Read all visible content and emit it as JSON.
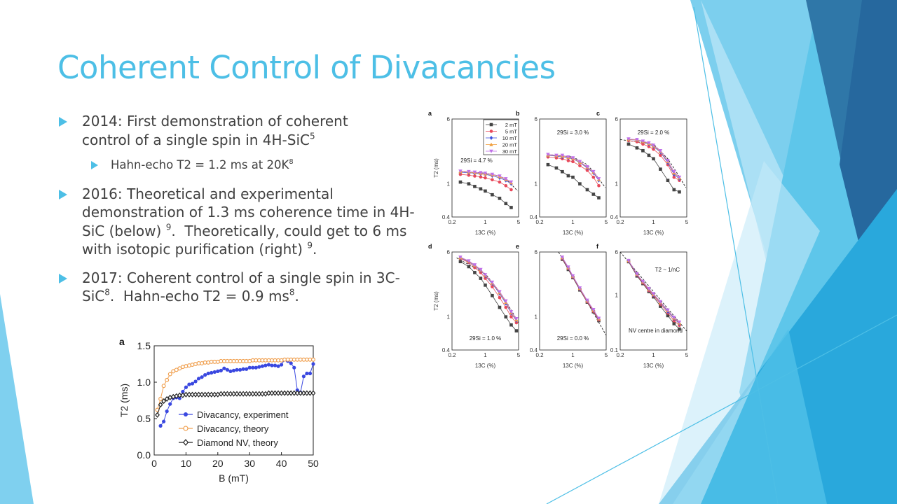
{
  "slide": {
    "title": "Coherent Control of Divacancies",
    "accent_color": "#4dbfe6",
    "bullets": [
      {
        "text": "2014: First demonstration of coherent control of a single spin in 4H-SiC",
        "sup": "5",
        "sub": {
          "text": "Hahn-echo T2 = 1.2 ms at 20K",
          "sup": "8"
        }
      },
      {
        "text_a": "2016: Theoretical and experimental demonstration of 1.3 ms coherence time in 4H-SiC (below)",
        "sup_a": "9",
        "text_b": ".  Theoretically, could get to 6 ms with isotopic purification (right)",
        "sup_b": "9",
        "text_c": "."
      },
      {
        "text_a": "2017: Coherent control of a single spin in 3C-SiC",
        "sup_a": "8",
        "text_b": ".  Hahn-echo T2 = 0.9 ms",
        "sup_b": "8",
        "text_c": "."
      }
    ]
  },
  "chart_data": [
    {
      "type": "line",
      "panel_label": "a",
      "xlabel": "B (mT)",
      "ylabel": "T2 (ms)",
      "xlim": [
        0,
        50
      ],
      "ylim": [
        0,
        1.5
      ],
      "xticks": [
        "0",
        "10",
        "20",
        "30",
        "40",
        "50"
      ],
      "yticks": [
        "0.0",
        "0.5",
        "1.0",
        "1.5"
      ],
      "legend_position": "bottom-right",
      "series": [
        {
          "name": "Divacancy, experiment",
          "color": "#3a48e0",
          "marker": "filled-circle",
          "x": [
            2,
            3,
            4,
            5,
            6,
            7,
            8,
            9,
            10,
            11,
            12,
            13,
            14,
            15,
            16,
            17,
            18,
            19,
            20,
            21,
            22,
            23,
            24,
            25,
            26,
            27,
            28,
            29,
            30,
            31,
            32,
            33,
            34,
            35,
            36,
            37,
            38,
            39,
            40,
            41,
            42,
            43,
            44,
            45,
            46,
            47,
            48,
            49,
            50
          ],
          "y": [
            0.4,
            0.46,
            0.6,
            0.7,
            0.78,
            0.79,
            0.78,
            0.87,
            0.93,
            0.97,
            0.98,
            1.01,
            1.05,
            1.07,
            1.1,
            1.12,
            1.13,
            1.14,
            1.15,
            1.16,
            1.19,
            1.17,
            1.15,
            1.16,
            1.17,
            1.17,
            1.18,
            1.18,
            1.2,
            1.2,
            1.2,
            1.21,
            1.22,
            1.23,
            1.24,
            1.23,
            1.23,
            1.22,
            1.24,
            1.31,
            1.29,
            1.26,
            1.2,
            0.89,
            0.86,
            1.08,
            1.12,
            1.12,
            1.25
          ]
        },
        {
          "name": "Divacancy, theory",
          "color": "#f0a050",
          "marker": "open-circle",
          "x": [
            1,
            2,
            3,
            4,
            5,
            6,
            7,
            8,
            9,
            10,
            11,
            12,
            13,
            14,
            15,
            16,
            17,
            18,
            19,
            20,
            21,
            22,
            23,
            24,
            25,
            26,
            27,
            28,
            29,
            30,
            31,
            32,
            33,
            34,
            35,
            36,
            37,
            38,
            39,
            40,
            41,
            42,
            43,
            44,
            45,
            46,
            47,
            48,
            49,
            50
          ],
          "y": [
            0.62,
            0.77,
            0.95,
            1.03,
            1.11,
            1.15,
            1.17,
            1.19,
            1.21,
            1.22,
            1.23,
            1.24,
            1.25,
            1.26,
            1.26,
            1.27,
            1.27,
            1.28,
            1.28,
            1.28,
            1.29,
            1.29,
            1.29,
            1.29,
            1.29,
            1.29,
            1.29,
            1.29,
            1.29,
            1.29,
            1.3,
            1.3,
            1.3,
            1.3,
            1.3,
            1.3,
            1.3,
            1.3,
            1.3,
            1.3,
            1.31,
            1.31,
            1.31,
            1.31,
            1.31,
            1.31,
            1.31,
            1.31,
            1.31,
            1.31
          ]
        },
        {
          "name": "Diamond NV, theory",
          "color": "#222222",
          "marker": "open-diamond",
          "x": [
            1,
            2,
            3,
            4,
            5,
            6,
            7,
            8,
            9,
            10,
            11,
            12,
            13,
            14,
            15,
            16,
            17,
            18,
            19,
            20,
            21,
            22,
            23,
            24,
            25,
            26,
            27,
            28,
            29,
            30,
            31,
            32,
            33,
            34,
            35,
            36,
            37,
            38,
            39,
            40,
            41,
            42,
            43,
            44,
            45,
            46,
            47,
            48,
            49,
            50
          ],
          "y": [
            0.55,
            0.69,
            0.74,
            0.77,
            0.79,
            0.8,
            0.81,
            0.82,
            0.82,
            0.83,
            0.83,
            0.83,
            0.83,
            0.83,
            0.83,
            0.83,
            0.83,
            0.83,
            0.83,
            0.83,
            0.84,
            0.84,
            0.84,
            0.84,
            0.84,
            0.84,
            0.84,
            0.84,
            0.84,
            0.84,
            0.84,
            0.84,
            0.84,
            0.84,
            0.84,
            0.85,
            0.85,
            0.85,
            0.85,
            0.85,
            0.85,
            0.85,
            0.85,
            0.85,
            0.85,
            0.85,
            0.85,
            0.85,
            0.85,
            0.85
          ]
        }
      ]
    },
    {
      "type": "scatter",
      "xlabel": "13C (%)",
      "ylabel": "T2 (ms)",
      "xscale": "log",
      "yscale": "log",
      "xlim": [
        0.2,
        5
      ],
      "xticks": [
        "0.2",
        "1",
        "5"
      ],
      "legend_position": "top-right (panel a)",
      "legend": [
        {
          "name": "2 mT",
          "color": "#444444",
          "marker": "square"
        },
        {
          "name": "5 mT",
          "color": "#e8495a",
          "marker": "circle"
        },
        {
          "name": "10 mT",
          "color": "#3b4fe0",
          "marker": "diamond"
        },
        {
          "name": "20 mT",
          "color": "#f0a040",
          "marker": "triangle-up"
        },
        {
          "name": "30 mT",
          "color": "#c070e8",
          "marker": "triangle-down"
        }
      ],
      "panels": [
        {
          "label": "a",
          "annotation": "29Si = 4.7 %",
          "ylim": [
            0.4,
            6
          ],
          "yticks": [
            "6",
            "1",
            "0.4"
          ],
          "x": [
            0.3,
            0.45,
            0.6,
            0.8,
            1.0,
            1.4,
            2.0,
            2.7,
            3.5
          ],
          "series": [
            [
              1.05,
              1.0,
              0.93,
              0.87,
              0.82,
              0.74,
              0.67,
              0.58,
              0.52
            ],
            [
              1.3,
              1.27,
              1.24,
              1.21,
              1.18,
              1.12,
              1.05,
              0.95,
              0.85
            ],
            [
              1.38,
              1.36,
              1.34,
              1.32,
              1.3,
              1.25,
              1.18,
              1.1,
              1.0
            ],
            [
              1.4,
              1.38,
              1.36,
              1.34,
              1.32,
              1.28,
              1.22,
              1.13,
              1.03
            ],
            [
              1.42,
              1.4,
              1.38,
              1.36,
              1.34,
              1.3,
              1.24,
              1.15,
              1.05
            ]
          ],
          "theory": [
            [
              0.3,
              1.4
            ],
            [
              1.0,
              1.35
            ],
            [
              2.0,
              1.24
            ],
            [
              3.0,
              1.08
            ],
            [
              4.8,
              0.82
            ]
          ]
        },
        {
          "label": "b",
          "annotation": "29Si = 3.0 %",
          "ylim": [
            0.4,
            6
          ],
          "yticks": [
            "6",
            "1",
            "0.4"
          ],
          "x": [
            0.3,
            0.45,
            0.6,
            0.8,
            1.0,
            1.4,
            2.0,
            2.7,
            3.5
          ],
          "series": [
            [
              1.7,
              1.55,
              1.4,
              1.25,
              1.2,
              1.0,
              0.85,
              0.75,
              0.68
            ],
            [
              2.1,
              2.05,
              2.0,
              1.9,
              1.85,
              1.65,
              1.45,
              1.2,
              0.95
            ],
            [
              2.2,
              2.15,
              2.1,
              2.05,
              2.0,
              1.8,
              1.55,
              1.35,
              1.1
            ],
            [
              2.22,
              2.18,
              2.15,
              2.08,
              2.02,
              1.82,
              1.58,
              1.38,
              1.13
            ],
            [
              2.25,
              2.2,
              2.2,
              2.1,
              2.05,
              1.85,
              1.6,
              1.4,
              1.15
            ]
          ],
          "theory": [
            [
              0.3,
              2.25
            ],
            [
              1.0,
              2.1
            ],
            [
              2.0,
              1.7
            ],
            [
              3.0,
              1.3
            ],
            [
              4.8,
              0.9
            ]
          ]
        },
        {
          "label": "c",
          "annotation": "29Si = 2.0 %",
          "ylim": [
            0.4,
            6
          ],
          "yticks": [
            "6",
            "1",
            "0.4"
          ],
          "x": [
            0.3,
            0.45,
            0.6,
            0.8,
            1.0,
            1.4,
            2.0,
            2.7,
            3.5
          ],
          "series": [
            [
              3.0,
              2.7,
              2.5,
              2.2,
              2.0,
              1.5,
              1.1,
              0.85,
              0.8
            ],
            [
              3.3,
              3.2,
              3.0,
              2.8,
              2.6,
              2.2,
              1.7,
              1.2,
              1.1
            ],
            [
              3.4,
              3.35,
              3.2,
              3.0,
              2.8,
              2.4,
              1.8,
              1.3,
              1.15
            ],
            [
              3.42,
              3.37,
              3.22,
              3.05,
              2.85,
              2.45,
              1.85,
              1.35,
              1.18
            ],
            [
              3.45,
              3.4,
              3.25,
              3.1,
              2.9,
              2.5,
              1.9,
              1.4,
              1.2
            ]
          ],
          "theory": [
            [
              0.2,
              3.4
            ],
            [
              1.0,
              3.0
            ],
            [
              2.0,
              2.0
            ],
            [
              3.0,
              1.4
            ],
            [
              4.8,
              0.9
            ]
          ]
        },
        {
          "label": "d",
          "annotation": "29Si = 1.0 %",
          "ylim": [
            0.4,
            6
          ],
          "yticks": [
            "6",
            "1",
            "0.4"
          ],
          "x": [
            0.3,
            0.45,
            0.6,
            0.8,
            1.0,
            1.4,
            2.0,
            2.7,
            3.5,
            4.5
          ],
          "series": [
            [
              4.6,
              4.0,
              3.4,
              2.9,
              2.4,
              1.8,
              1.3,
              1.0,
              0.8,
              0.68
            ],
            [
              5.0,
              4.5,
              3.9,
              3.4,
              2.9,
              2.3,
              1.7,
              1.3,
              1.0,
              0.85
            ],
            [
              5.1,
              4.6,
              4.1,
              3.6,
              3.1,
              2.5,
              1.9,
              1.45,
              1.1,
              0.9
            ],
            [
              5.15,
              4.65,
              4.15,
              3.65,
              3.15,
              2.55,
              1.95,
              1.5,
              1.12,
              0.92
            ],
            [
              5.2,
              4.7,
              4.2,
              3.7,
              3.2,
              2.6,
              2.0,
              1.55,
              1.15,
              0.95
            ]
          ],
          "theory": [
            [
              0.25,
              5.1
            ],
            [
              1.0,
              3.3
            ],
            [
              2.0,
              2.0
            ],
            [
              3.0,
              1.4
            ],
            [
              5.0,
              0.85
            ]
          ]
        },
        {
          "label": "e",
          "annotation": "29Si = 0.0 %",
          "ylim": [
            0.4,
            6
          ],
          "yticks": [
            "6",
            "1",
            "0.4"
          ],
          "x": [
            0.6,
            0.8,
            1.0,
            1.4,
            2.0,
            2.7,
            3.5
          ],
          "series": [
            [
              4.9,
              3.7,
              2.95,
              2.1,
              1.5,
              1.15,
              0.9
            ],
            [
              5.0,
              3.8,
              3.0,
              2.15,
              1.52,
              1.17,
              0.92
            ],
            [
              5.1,
              3.85,
              3.05,
              2.18,
              1.55,
              1.2,
              0.94
            ],
            [
              5.15,
              3.9,
              3.08,
              2.2,
              1.56,
              1.21,
              0.95
            ],
            [
              5.2,
              3.95,
              3.1,
              2.22,
              1.58,
              1.22,
              0.96
            ]
          ],
          "theory": [
            [
              0.5,
              6.0
            ],
            [
              5.0,
              0.6
            ]
          ]
        },
        {
          "label": "f",
          "annotation": "T2 ~ 1/nC",
          "annotation2": "NV centre in diamond",
          "ylim": [
            0.1,
            6
          ],
          "yticks": [
            "6",
            "1",
            "0.1"
          ],
          "x": [
            0.3,
            0.45,
            0.6,
            0.8,
            1.0,
            1.4,
            2.0,
            2.7,
            3.5
          ],
          "series": [
            [
              4.0,
              2.2,
              1.6,
              1.15,
              0.92,
              0.62,
              0.42,
              0.3,
              0.24
            ],
            [
              4.1,
              2.3,
              1.65,
              1.2,
              0.97,
              0.68,
              0.47,
              0.34,
              0.28
            ],
            [
              4.15,
              2.35,
              1.7,
              1.25,
              1.0,
              0.72,
              0.5,
              0.37,
              0.3
            ],
            [
              4.18,
              2.38,
              1.72,
              1.27,
              1.02,
              0.73,
              0.52,
              0.38,
              0.31
            ],
            [
              4.2,
              2.4,
              1.75,
              1.3,
              1.05,
              0.75,
              0.53,
              0.39,
              0.32
            ]
          ],
          "theory": [
            [
              0.2,
              6.0
            ],
            [
              5.0,
              0.22
            ]
          ]
        }
      ]
    }
  ]
}
